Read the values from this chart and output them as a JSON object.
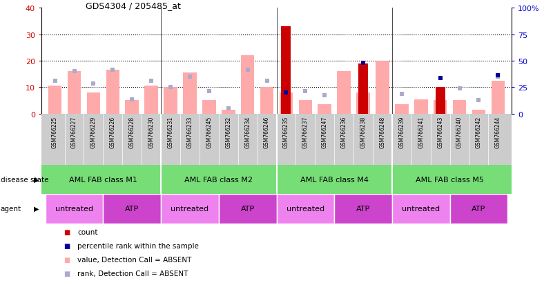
{
  "title": "GDS4304 / 205485_at",
  "samples": [
    "GSM766225",
    "GSM766227",
    "GSM766229",
    "GSM766226",
    "GSM766228",
    "GSM766230",
    "GSM766231",
    "GSM766233",
    "GSM766245",
    "GSM766232",
    "GSM766234",
    "GSM766246",
    "GSM766235",
    "GSM766237",
    "GSM766247",
    "GSM766236",
    "GSM766238",
    "GSM766248",
    "GSM766239",
    "GSM766241",
    "GSM766243",
    "GSM766240",
    "GSM766242",
    "GSM766244"
  ],
  "count_values": [
    0,
    0,
    0,
    0,
    0,
    0,
    0,
    0,
    0,
    0,
    0,
    0,
    33,
    0,
    0,
    0,
    19,
    0,
    0,
    0,
    10,
    0,
    0,
    0
  ],
  "value_absent": [
    10.5,
    16.0,
    8.0,
    16.5,
    5.0,
    10.5,
    10.0,
    15.5,
    5.0,
    1.5,
    22.0,
    10.0,
    8.0,
    5.0,
    3.5,
    16.0,
    8.0,
    20.0,
    3.5,
    5.5,
    5.0,
    5.0,
    1.5,
    12.5
  ],
  "rank_absent": [
    12.5,
    16.0,
    11.5,
    16.5,
    5.5,
    12.5,
    10.0,
    14.0,
    8.5,
    2.0,
    16.5,
    12.5,
    0,
    8.5,
    7.0,
    0,
    0,
    0,
    7.5,
    0,
    0,
    9.5,
    5.0,
    14.0
  ],
  "percentile_rank": [
    0,
    0,
    0,
    0,
    0,
    0,
    0,
    0,
    0,
    0,
    0,
    0,
    20,
    0,
    0,
    0,
    48,
    0,
    0,
    0,
    34,
    0,
    0,
    36
  ],
  "disease_groups": [
    {
      "label": "AML FAB class M1",
      "start": 0,
      "end": 6
    },
    {
      "label": "AML FAB class M2",
      "start": 6,
      "end": 12
    },
    {
      "label": "AML FAB class M4",
      "start": 12,
      "end": 18
    },
    {
      "label": "AML FAB class M5",
      "start": 18,
      "end": 24
    }
  ],
  "agent_groups": [
    {
      "label": "untreated",
      "start": 0,
      "end": 3,
      "color": "#ee82ee"
    },
    {
      "label": "ATP",
      "start": 3,
      "end": 6,
      "color": "#cc44cc"
    },
    {
      "label": "untreated",
      "start": 6,
      "end": 9,
      "color": "#ee82ee"
    },
    {
      "label": "ATP",
      "start": 9,
      "end": 12,
      "color": "#cc44cc"
    },
    {
      "label": "untreated",
      "start": 12,
      "end": 15,
      "color": "#ee82ee"
    },
    {
      "label": "ATP",
      "start": 15,
      "end": 18,
      "color": "#cc44cc"
    },
    {
      "label": "untreated",
      "start": 18,
      "end": 21,
      "color": "#ee82ee"
    },
    {
      "label": "ATP",
      "start": 21,
      "end": 24,
      "color": "#cc44cc"
    }
  ],
  "ylim_left": [
    0,
    40
  ],
  "ylim_right": [
    0,
    100
  ],
  "yticks_left": [
    0,
    10,
    20,
    30,
    40
  ],
  "yticks_right": [
    0,
    25,
    50,
    75,
    100
  ],
  "count_color": "#cc0000",
  "value_absent_color": "#ffaaaa",
  "rank_absent_color": "#aaaacc",
  "percentile_color": "#000099",
  "disease_color": "#77dd77",
  "tick_color": "#cc0000",
  "right_tick_color": "#0000cc"
}
